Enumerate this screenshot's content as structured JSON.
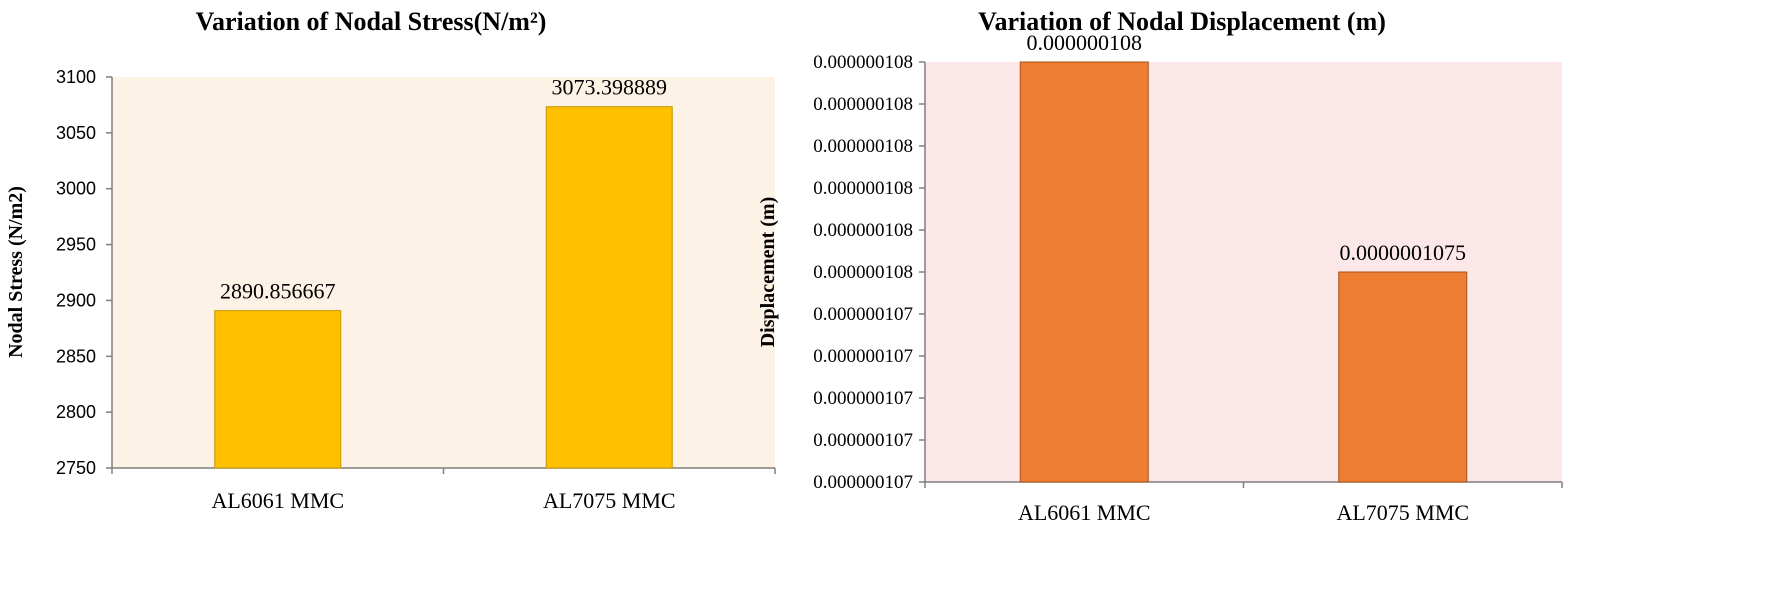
{
  "chart_data": [
    {
      "type": "bar",
      "title": "Variation  of Nodal Stress(N/m²)",
      "xlabel": "",
      "ylabel": "Nodal Stress  (N/m2)",
      "categories": [
        "AL6061 MMC",
        "AL7075 MMC"
      ],
      "values": [
        2890.856667,
        3073.398889
      ],
      "data_labels": [
        "2890.856667",
        "3073.398889"
      ],
      "ylim": [
        2750,
        3100
      ],
      "yticks": [
        "2750",
        "2800",
        "2850",
        "2900",
        "2950",
        "3000",
        "3050",
        "3100"
      ],
      "grid": false,
      "legend": "none",
      "bar_color": "#FFC000",
      "plot_bg": "#FDF2E6"
    },
    {
      "type": "bar",
      "title": "Variation  of Nodal Displacement  (m)",
      "xlabel": "",
      "ylabel": "Displacement  (m)",
      "categories": [
        "AL6061 MMC",
        "AL7075 MMC"
      ],
      "values": [
        1.08e-07,
        1.075e-07
      ],
      "data_labels": [
        "0.000000108",
        "0.0000001075"
      ],
      "ylim": [
        1.07e-07,
        1.08e-07
      ],
      "yticks": [
        "0.000000107",
        "0.000000107",
        "0.000000107",
        "0.000000107",
        "0.000000107",
        "0.000000108",
        "0.000000108",
        "0.000000108",
        "0.000000108",
        "0.000000108",
        "0.000000108"
      ],
      "grid": false,
      "legend": "none",
      "bar_color": "#ED7D31",
      "plot_bg": "#FCE8E8"
    }
  ]
}
